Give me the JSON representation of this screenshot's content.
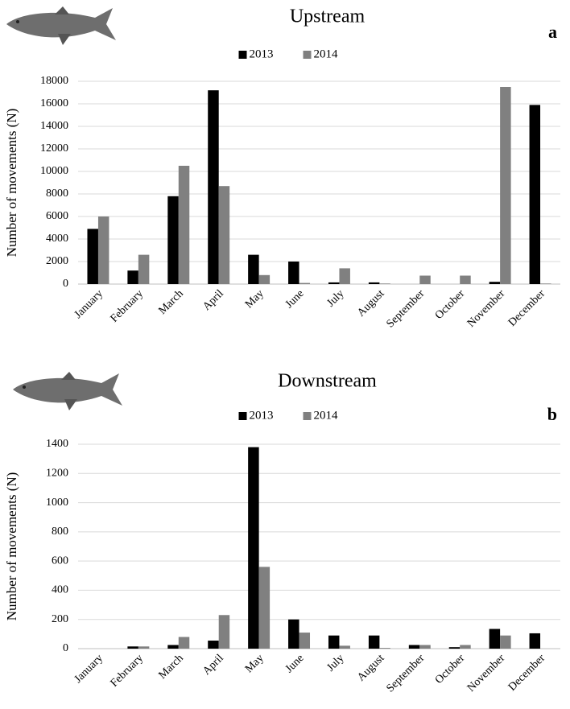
{
  "chart_data": [
    {
      "type": "bar",
      "title": "Upstream",
      "panel_label": "a",
      "y_label": "Number of movements (N)",
      "categories": [
        "January",
        "February",
        "March",
        "April",
        "May",
        "June",
        "July",
        "August",
        "September",
        "October",
        "November",
        "December"
      ],
      "series": [
        {
          "name": "2013",
          "color": "#000000",
          "values": [
            4900,
            1200,
            7800,
            17200,
            2600,
            2000,
            150,
            150,
            0,
            0,
            200,
            15900
          ]
        },
        {
          "name": "2014",
          "color": "#808080",
          "values": [
            6000,
            2600,
            10500,
            8700,
            800,
            100,
            1400,
            50,
            750,
            750,
            17500,
            50
          ]
        }
      ],
      "ylim": [
        0,
        18000
      ],
      "yticks": [
        0,
        2000,
        4000,
        6000,
        8000,
        10000,
        12000,
        14000,
        16000,
        18000
      ],
      "grid": true,
      "legend": "top"
    },
    {
      "type": "bar",
      "title": "Downstream",
      "panel_label": "b",
      "y_label": "Number of movements (N)",
      "categories": [
        "January",
        "February",
        "March",
        "April",
        "May",
        "June",
        "July",
        "August",
        "September",
        "October",
        "November",
        "December"
      ],
      "series": [
        {
          "name": "2013",
          "color": "#000000",
          "values": [
            0,
            15,
            25,
            55,
            1380,
            200,
            90,
            90,
            25,
            10,
            135,
            105
          ]
        },
        {
          "name": "2014",
          "color": "#808080",
          "values": [
            0,
            15,
            80,
            230,
            560,
            110,
            20,
            5,
            25,
            25,
            90,
            0
          ]
        }
      ],
      "ylim": [
        0,
        1400
      ],
      "yticks": [
        0,
        200,
        400,
        600,
        800,
        1000,
        1200,
        1400
      ],
      "grid": true,
      "legend": "top"
    }
  ]
}
